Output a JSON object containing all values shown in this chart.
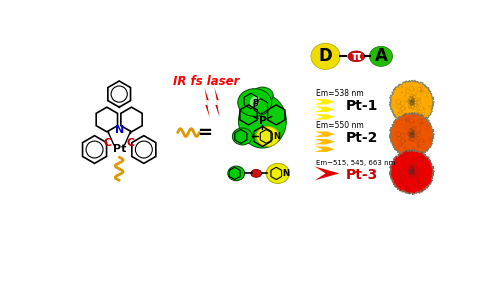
{
  "bg_color": "#ffffff",
  "ir_laser_text": "IR fs laser",
  "ir_laser_color": "#ff0000",
  "eq_sign": "=",
  "D_label": "D",
  "pi_label": "π",
  "A_label": "A",
  "D_color": "#eeee00",
  "pi_color": "#cc1111",
  "A_color": "#22bb00",
  "wavy_color": "#dd9900",
  "green_blob_color": "#00cc00",
  "yellow_blob_color": "#eeee00",
  "pt_labels": [
    "Pt-1",
    "Pt-2",
    "Pt-3"
  ],
  "pt_label_colors": [
    "#000000",
    "#000000",
    "#cc0000"
  ],
  "em_labels": [
    "Em=538 nm",
    "Em=550 nm",
    "Em−515, 545, 663 nm"
  ],
  "lightning_colors": [
    "#ffee00",
    "#ffbb00",
    "#dd0000"
  ],
  "powder_colors": [
    "#ffaa00",
    "#ee5500",
    "#ee0000"
  ],
  "powder_edge_colors": [
    "#888866",
    "#887755",
    "#886655"
  ],
  "N_color": "#0000cc",
  "C_color": "#cc0000",
  "Pt_color": "#000000",
  "bolt_color": "#cc0000"
}
